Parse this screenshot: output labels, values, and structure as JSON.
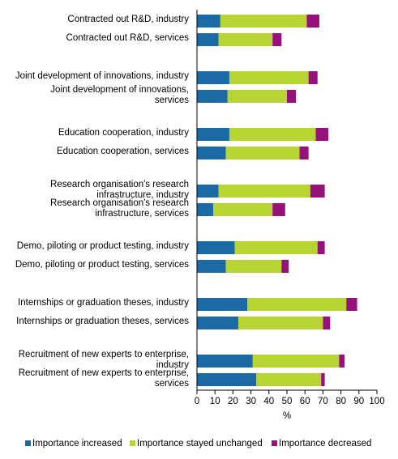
{
  "chart_data": {
    "type": "bar",
    "orientation": "horizontal",
    "stacked": true,
    "categories": [
      [
        "Contracted out R&D, industry"
      ],
      [
        "Contracted out R&D, services"
      ],
      [
        "Joint development of innovations, industry"
      ],
      [
        "Joint development of innovations,",
        "services"
      ],
      [
        "Education cooperation, industry"
      ],
      [
        "Education cooperation, services"
      ],
      [
        "Research organisation's research",
        "infrastructure, industry"
      ],
      [
        "Research organisation's research",
        "infrastructure, services"
      ],
      [
        "Demo, piloting or product testing, industry"
      ],
      [
        "Demo, piloting or product testing, services"
      ],
      [
        "Internships or graduation theses, industry"
      ],
      [
        "Internships or graduation theses, services"
      ],
      [
        "Recruitment of new experts to enterprise,",
        "industry"
      ],
      [
        "Recruitment of new experts to enterprise,",
        "services"
      ]
    ],
    "series": [
      {
        "name": "Importance increased",
        "color": "#1b6aa5",
        "values": [
          13,
          12,
          18,
          17,
          18,
          16,
          12,
          9,
          21,
          16,
          28,
          23,
          31,
          33
        ]
      },
      {
        "name": "Importance stayed unchanged",
        "color": "#b7d433",
        "values": [
          48,
          30,
          44,
          33,
          48,
          41,
          51,
          33,
          46,
          31,
          55,
          47,
          48,
          36
        ]
      },
      {
        "name": "Importance decreased",
        "color": "#97117a",
        "values": [
          7,
          5,
          5,
          5,
          7,
          5,
          8,
          7,
          4,
          4,
          6,
          4,
          3,
          2
        ]
      }
    ],
    "xlabel": "%",
    "xlim": [
      0,
      100
    ],
    "xticks": [
      "0",
      "10",
      "20",
      "30",
      "40",
      "50",
      "60",
      "70",
      "80",
      "90",
      "100"
    ],
    "grid": false,
    "legend_position": "bottom"
  }
}
